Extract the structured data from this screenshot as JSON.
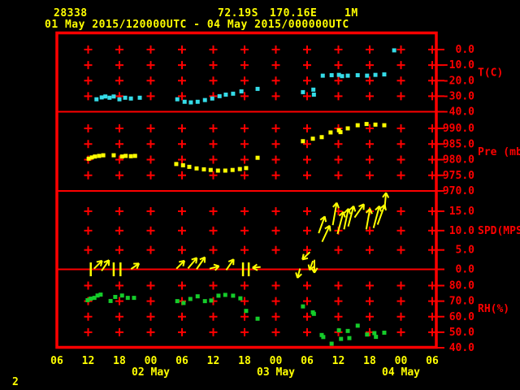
{
  "header": {
    "station_id": "28338",
    "latitude": "72.19S",
    "longitude": "170.16E",
    "level": "1M",
    "period": "01 May 2015/120000UTC - 04 May 2015/000000UTC"
  },
  "page_number": "2",
  "colors": {
    "background": "#000000",
    "grid": "#ff0000",
    "axis_text": "#ff0000",
    "time_text": "#ffff00",
    "temperature": "#35dce8",
    "pressure": "#ffff00",
    "wind": "#ffff00",
    "humidity": "#15cc2a"
  },
  "chart_data": {
    "type": "scatter",
    "x_axis": {
      "unit": "hours since 01 May 2015 00UTC",
      "range": [
        6,
        78
      ],
      "grid_columns_t": [
        12,
        18,
        24,
        30,
        36,
        42,
        48,
        54,
        60,
        66,
        72,
        78
      ],
      "hour_labels": [
        {
          "t": 6,
          "label": "06"
        },
        {
          "t": 12,
          "label": "12"
        },
        {
          "t": 18,
          "label": "18"
        },
        {
          "t": 24,
          "label": "00"
        },
        {
          "t": 30,
          "label": "06"
        },
        {
          "t": 36,
          "label": "12"
        },
        {
          "t": 42,
          "label": "18"
        },
        {
          "t": 48,
          "label": "00"
        },
        {
          "t": 54,
          "label": "06"
        },
        {
          "t": 60,
          "label": "12"
        },
        {
          "t": 66,
          "label": "18"
        },
        {
          "t": 72,
          "label": "00"
        },
        {
          "t": 78,
          "label": "06"
        }
      ],
      "date_labels": [
        {
          "t": 24,
          "label": "02 May"
        },
        {
          "t": 48,
          "label": "03 May"
        },
        {
          "t": 72,
          "label": "04 May"
        }
      ]
    },
    "panels": [
      {
        "name": "temperature",
        "label": "T(C)",
        "label_at_value": -15,
        "ylim": [
          -40,
          0
        ],
        "ticks": [
          {
            "v": 0,
            "label": "0.0"
          },
          {
            "v": -10,
            "label": "-10.0"
          },
          {
            "v": -20,
            "label": "-20.0"
          },
          {
            "v": -30,
            "label": "-30.0"
          },
          {
            "v": -40,
            "label": "-40.0"
          }
        ],
        "grid_values": [
          0,
          -10,
          -20,
          -30
        ],
        "points": [
          [
            13.6,
            -32.0
          ],
          [
            14.6,
            -30.8
          ],
          [
            15.3,
            -30.2
          ],
          [
            16.1,
            -31.0
          ],
          [
            16.9,
            -30.2
          ],
          [
            18.0,
            -32.0
          ],
          [
            19.1,
            -31.0
          ],
          [
            20.2,
            -31.5
          ],
          [
            21.9,
            -31.0
          ],
          [
            29.1,
            -32.0
          ],
          [
            30.5,
            -33.6
          ],
          [
            31.7,
            -34.0
          ],
          [
            33.0,
            -33.6
          ],
          [
            34.4,
            -32.5
          ],
          [
            35.8,
            -31.5
          ],
          [
            37.2,
            -30.0
          ],
          [
            38.4,
            -29.0
          ],
          [
            39.8,
            -28.4
          ],
          [
            41.4,
            -26.9
          ],
          [
            44.5,
            -25.3
          ],
          [
            53.2,
            -27.4
          ],
          [
            55.2,
            -25.8
          ],
          [
            55.3,
            -29.0
          ],
          [
            57.0,
            -16.8
          ],
          [
            58.7,
            -16.5
          ],
          [
            60.1,
            -16.3
          ],
          [
            60.7,
            -17.1
          ],
          [
            61.8,
            -16.8
          ],
          [
            63.7,
            -16.5
          ],
          [
            65.5,
            -16.8
          ],
          [
            67.1,
            -16.3
          ],
          [
            68.8,
            -16.0
          ],
          [
            70.7,
            -0.5
          ]
        ]
      },
      {
        "name": "pressure",
        "label": "Pre (mb)",
        "label_at_value": 982.5,
        "ylim": [
          970,
          990
        ],
        "ticks": [
          {
            "v": 990,
            "label": "990.0"
          },
          {
            "v": 985,
            "label": "985.0"
          },
          {
            "v": 980,
            "label": "980.0"
          },
          {
            "v": 975,
            "label": "975.0"
          },
          {
            "v": 970,
            "label": "970.0"
          }
        ],
        "grid_values": [
          990,
          985,
          980,
          975
        ],
        "points": [
          [
            12.1,
            980.3
          ],
          [
            12.7,
            980.7
          ],
          [
            13.3,
            981.0
          ],
          [
            14.1,
            981.2
          ],
          [
            14.9,
            981.4
          ],
          [
            16.9,
            981.4
          ],
          [
            18.5,
            981.0
          ],
          [
            19.2,
            981.2
          ],
          [
            20.2,
            981.1
          ],
          [
            21.0,
            981.2
          ],
          [
            28.9,
            978.6
          ],
          [
            30.2,
            978.2
          ],
          [
            31.4,
            977.7
          ],
          [
            32.8,
            977.2
          ],
          [
            34.2,
            976.9
          ],
          [
            35.5,
            976.7
          ],
          [
            36.9,
            976.5
          ],
          [
            38.3,
            976.5
          ],
          [
            39.7,
            976.7
          ],
          [
            41.1,
            977.0
          ],
          [
            42.3,
            977.3
          ],
          [
            44.5,
            980.6
          ],
          [
            53.2,
            985.9
          ],
          [
            55.1,
            986.7
          ],
          [
            56.8,
            987.2
          ],
          [
            58.5,
            988.7
          ],
          [
            60.1,
            989.4
          ],
          [
            60.4,
            988.8
          ],
          [
            61.8,
            990.0
          ],
          [
            63.7,
            991.0
          ],
          [
            65.4,
            991.4
          ],
          [
            67.1,
            991.2
          ],
          [
            68.8,
            991.0
          ]
        ]
      },
      {
        "name": "wind_speed",
        "label": "SPD(MPS)",
        "label_at_value": 10,
        "ylim": [
          0,
          15
        ],
        "ticks": [
          {
            "v": 15,
            "label": "15.0"
          },
          {
            "v": 10,
            "label": "10.0"
          },
          {
            "v": 5,
            "label": "5.0"
          },
          {
            "v": 0,
            "label": "0.0"
          }
        ],
        "grid_values": [
          15,
          10,
          5
        ],
        "zero_line_value": 0,
        "arrow_convention": "dir = pointing direction in degrees CCW from east; arrow centered at (t, speed)",
        "arrows": [
          {
            "t": 13.9,
            "speed": 1.2,
            "dir": 45,
            "len": 14
          },
          {
            "t": 15.3,
            "speed": 1.0,
            "dir": 55,
            "len": 16
          },
          {
            "t": 21.0,
            "speed": 0.8,
            "dir": 35,
            "len": 12
          },
          {
            "t": 29.7,
            "speed": 1.2,
            "dir": 45,
            "len": 14
          },
          {
            "t": 32.0,
            "speed": 1.6,
            "dir": 50,
            "len": 17
          },
          {
            "t": 33.6,
            "speed": 1.6,
            "dir": 55,
            "len": 18
          },
          {
            "t": 36.2,
            "speed": 0.5,
            "dir": 15,
            "len": 12
          },
          {
            "t": 39.2,
            "speed": 1.2,
            "dir": 55,
            "len": 16
          },
          {
            "t": 44.3,
            "speed": 0.5,
            "dir": 185,
            "len": 10
          },
          {
            "t": 52.4,
            "speed": -1.0,
            "dir": 255,
            "len": 12
          },
          {
            "t": 53.8,
            "speed": 3.5,
            "dir": 225,
            "len": 13
          },
          {
            "t": 54.8,
            "speed": 1.0,
            "dir": 250,
            "len": 12
          },
          {
            "t": 55.4,
            "speed": 0.8,
            "dir": 270,
            "len": 16
          },
          {
            "t": 56.8,
            "speed": 11.5,
            "dir": 70,
            "len": 22
          },
          {
            "t": 57.6,
            "speed": 9.2,
            "dir": 65,
            "len": 22
          },
          {
            "t": 59.3,
            "speed": 14.3,
            "dir": 80,
            "len": 28
          },
          {
            "t": 60.4,
            "speed": 12.0,
            "dir": 75,
            "len": 28
          },
          {
            "t": 61.5,
            "speed": 13.0,
            "dir": 78,
            "len": 26
          },
          {
            "t": 62.4,
            "speed": 13.7,
            "dir": 75,
            "len": 26
          },
          {
            "t": 64.0,
            "speed": 15.1,
            "dir": 55,
            "len": 20
          },
          {
            "t": 65.7,
            "speed": 13.0,
            "dir": 80,
            "len": 26
          },
          {
            "t": 67.3,
            "speed": 13.5,
            "dir": 75,
            "len": 28
          },
          {
            "t": 68.2,
            "speed": 14.1,
            "dir": 70,
            "len": 26
          },
          {
            "t": 69.0,
            "speed": 17.7,
            "dir": 85,
            "len": 20
          }
        ],
        "calm_ticks_t": [
          12.5,
          16.9,
          18.2,
          41.7,
          42.8
        ]
      },
      {
        "name": "relative_humidity",
        "label": "RH(%)",
        "label_at_value": 65,
        "ylim": [
          40,
          80
        ],
        "ticks": [
          {
            "v": 80,
            "label": "80.0"
          },
          {
            "v": 70,
            "label": "70.0"
          },
          {
            "v": 60,
            "label": "60.0"
          },
          {
            "v": 50,
            "label": "50.0"
          },
          {
            "v": 40,
            "label": "40.0"
          }
        ],
        "grid_values": [
          80,
          70,
          60,
          50
        ],
        "points": [
          [
            11.9,
            70.6
          ],
          [
            12.5,
            71.6
          ],
          [
            13.2,
            72.1
          ],
          [
            13.8,
            73.6
          ],
          [
            14.4,
            74.2
          ],
          [
            16.3,
            70.1
          ],
          [
            17.2,
            72.7
          ],
          [
            18.5,
            73.6
          ],
          [
            19.6,
            72.1
          ],
          [
            20.8,
            72.1
          ],
          [
            29.1,
            70.0
          ],
          [
            30.3,
            68.8
          ],
          [
            31.6,
            71.4
          ],
          [
            33.0,
            73.1
          ],
          [
            34.4,
            70.0
          ],
          [
            35.6,
            70.4
          ],
          [
            37.0,
            73.5
          ],
          [
            38.3,
            74.0
          ],
          [
            39.8,
            73.5
          ],
          [
            41.2,
            71.8
          ],
          [
            42.3,
            63.7
          ],
          [
            44.5,
            58.7
          ],
          [
            53.2,
            66.6
          ],
          [
            55.1,
            62.8
          ],
          [
            55.3,
            61.8
          ],
          [
            56.8,
            48.2
          ],
          [
            57.1,
            46.9
          ],
          [
            58.7,
            42.6
          ],
          [
            60.1,
            51.2
          ],
          [
            60.5,
            45.7
          ],
          [
            61.8,
            50.8
          ],
          [
            62.1,
            46.2
          ],
          [
            63.7,
            54.2
          ],
          [
            65.5,
            48.5
          ],
          [
            66.9,
            49.4
          ],
          [
            67.2,
            47.0
          ],
          [
            68.8,
            49.7
          ]
        ]
      }
    ]
  }
}
